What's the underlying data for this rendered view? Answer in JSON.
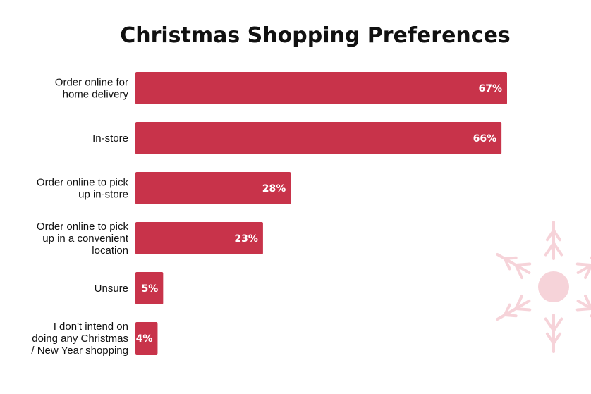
{
  "chart_data": {
    "type": "bar",
    "orientation": "horizontal",
    "title": "Christmas Shopping Preferences",
    "xlabel": "",
    "ylabel": "",
    "xlim": [
      0,
      100
    ],
    "grid": false,
    "categories": [
      [
        "Order online for",
        "home delivery"
      ],
      [
        "In-store"
      ],
      [
        "Order online to pick",
        "up in-store"
      ],
      [
        "Order online to pick",
        "up in a convenient",
        "location"
      ],
      [
        "Unsure"
      ],
      [
        "I don't intend on",
        "doing any Christmas",
        "/ New Year shopping"
      ]
    ],
    "values": [
      67,
      66,
      28,
      23,
      5,
      4
    ],
    "value_labels": [
      "67%",
      "66%",
      "28%",
      "23%",
      "5%",
      "4%"
    ]
  },
  "colors": {
    "bar": "#c8334a",
    "value_text": "#ffffff",
    "snowflake": "#f6d3d9"
  },
  "decoration": {
    "icon": "snowflake-icon"
  }
}
